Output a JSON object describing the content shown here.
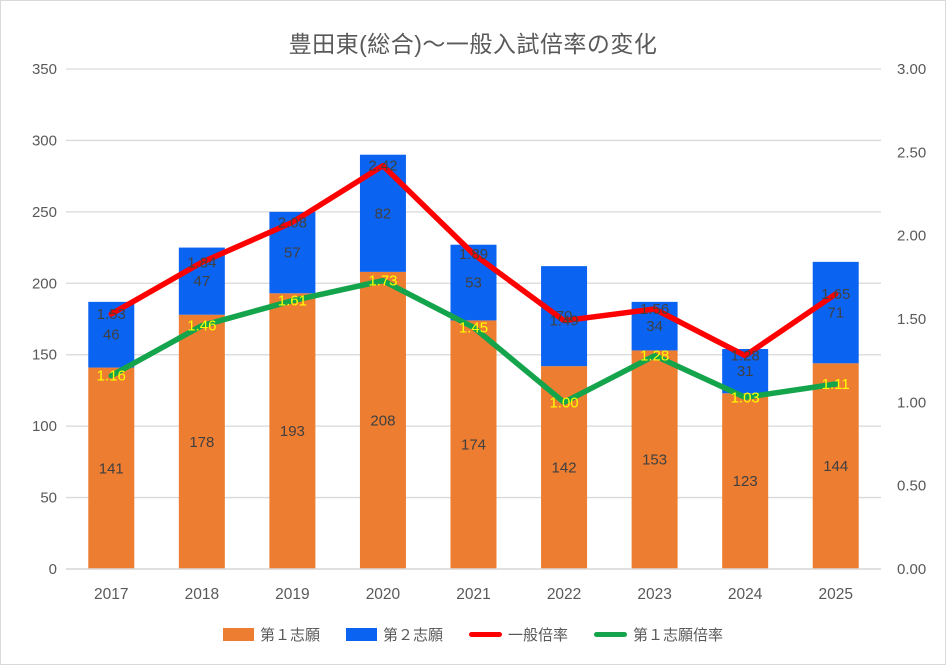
{
  "title": "豊田東(総合)～一般入試倍率の変化",
  "colors": {
    "bar1": "#ED7D31",
    "bar2": "#0B63F1",
    "line_general": "#FE0000",
    "line_first": "#14A44B",
    "yellow_label": "#FFFF00",
    "dark_label": "#404040",
    "axis_text": "#595959",
    "gridline": "#D9D9D9",
    "background": "#FFFFFF"
  },
  "chart_data": {
    "type": "combo (stacked bar + line, dual axis)",
    "title": "豊田東(総合)～一般入試倍率の変化",
    "categories": [
      "2017",
      "2018",
      "2019",
      "2020",
      "2021",
      "2022",
      "2023",
      "2024",
      "2025"
    ],
    "series": [
      {
        "name": "第１志願",
        "type": "bar",
        "stack": 1,
        "axis": "left",
        "color": "#ED7D31",
        "values": [
          141,
          178,
          193,
          208,
          174,
          142,
          153,
          123,
          144
        ],
        "value_labels": [
          "141",
          "178",
          "193",
          "208",
          "174",
          "142",
          "153",
          "123",
          "144"
        ],
        "value_label_color": "#404040"
      },
      {
        "name": "第２志願",
        "type": "bar",
        "stack": 1,
        "axis": "left",
        "color": "#0B63F1",
        "values": [
          46,
          47,
          57,
          82,
          53,
          70,
          34,
          31,
          71
        ],
        "value_labels": [
          "46",
          "47",
          "57",
          "82",
          "53",
          "70",
          "34",
          "31",
          "71"
        ],
        "value_label_color": "#404040"
      },
      {
        "name": "一般倍率",
        "type": "line",
        "axis": "right",
        "color": "#FE0000",
        "values": [
          1.53,
          1.84,
          2.08,
          2.42,
          1.89,
          1.49,
          1.56,
          1.28,
          1.65
        ],
        "value_labels": [
          "1.53",
          "1.84",
          "2.08",
          "2.42",
          "1.89",
          "1.49",
          "1.56",
          "1.28",
          "1.65"
        ],
        "value_label_color": "#404040"
      },
      {
        "name": "第１志願倍率",
        "type": "line",
        "axis": "right",
        "color": "#14A44B",
        "values": [
          1.16,
          1.46,
          1.61,
          1.73,
          1.45,
          1.0,
          1.28,
          1.03,
          1.11
        ],
        "value_labels": [
          "1.16",
          "1.46",
          "1.61",
          "1.73",
          "1.45",
          "1.00",
          "1.28",
          "1.03",
          "1.11"
        ],
        "value_label_color": "#FFFF00"
      }
    ],
    "left_axis": {
      "min": 0,
      "max": 350,
      "step": 50,
      "ticks": [
        "350",
        "300",
        "250",
        "200",
        "150",
        "100",
        "50",
        "0"
      ]
    },
    "right_axis": {
      "min": 0,
      "max": 3.0,
      "step": 0.5,
      "ticks": [
        "3.00",
        "2.50",
        "2.00",
        "1.50",
        "1.00",
        "0.50",
        "0.00"
      ]
    },
    "grid": "horizontal-only",
    "legend_position": "bottom",
    "legend": [
      "第１志願",
      "第２志願",
      "一般倍率",
      "第１志願倍率"
    ]
  }
}
